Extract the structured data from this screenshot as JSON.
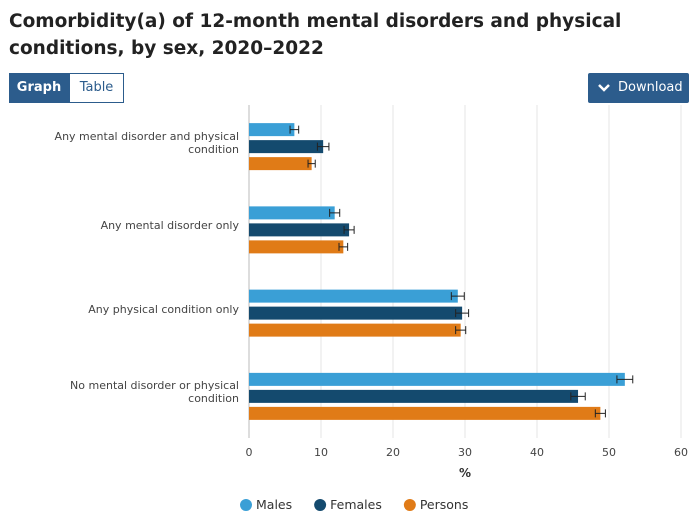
{
  "title": "Comorbidity(a) of 12-month mental disorders and physical conditions, by sex, 2020–2022",
  "controls": {
    "graph": "Graph",
    "table": "Table",
    "download": "Download"
  },
  "chart_data": {
    "type": "bar",
    "orientation": "horizontal",
    "x_label": "%",
    "categories": [
      "Any mental disorder and physical condition",
      "Any mental disorder only",
      "Any physical condition only",
      "No mental disorder or physical condition"
    ],
    "series": [
      {
        "name": "Males",
        "color": "#3a9fd6",
        "values": [
          6.3,
          11.9,
          29.0,
          52.2
        ],
        "errors": [
          0.6,
          0.7,
          0.9,
          1.1
        ]
      },
      {
        "name": "Females",
        "color": "#144a6e",
        "values": [
          10.3,
          13.9,
          29.6,
          45.7
        ],
        "errors": [
          0.8,
          0.7,
          0.9,
          1.0
        ]
      },
      {
        "name": "Persons",
        "color": "#e07b17",
        "values": [
          8.7,
          13.1,
          29.4,
          48.8
        ],
        "errors": [
          0.5,
          0.6,
          0.7,
          0.7
        ]
      }
    ],
    "xlim": [
      0,
      60
    ],
    "xticks": [
      0,
      10,
      20,
      30,
      40,
      50,
      60
    ],
    "grid": true
  }
}
